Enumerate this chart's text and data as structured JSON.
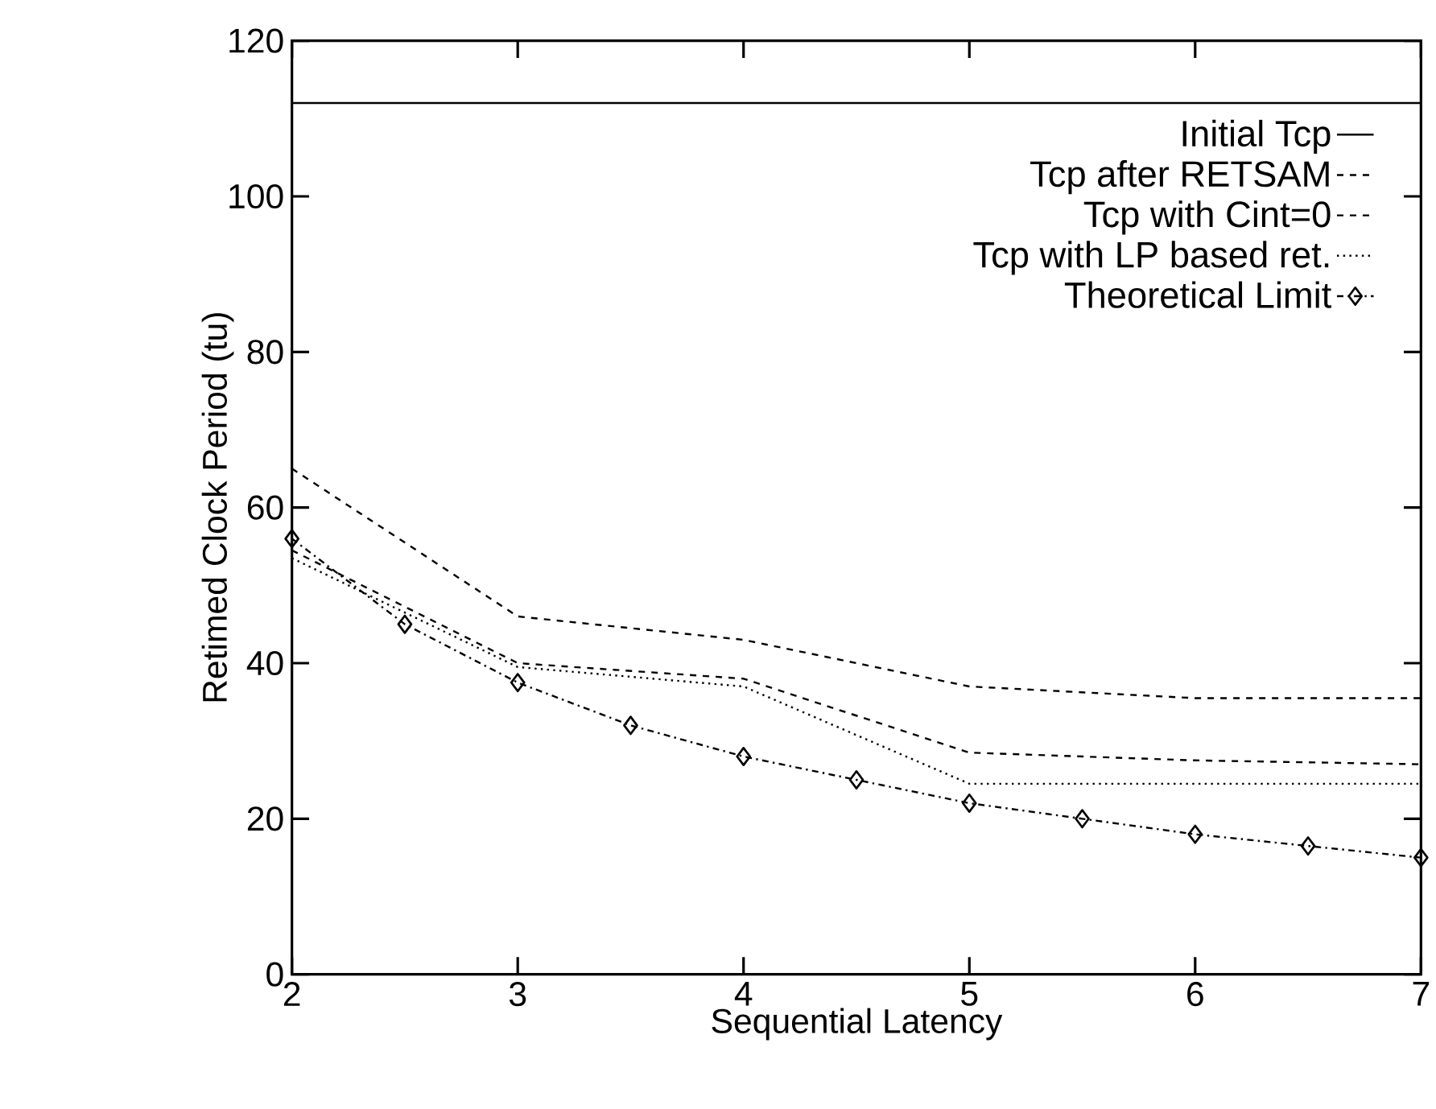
{
  "chart_data": {
    "type": "line",
    "xlabel": "Sequential Latency",
    "ylabel": "Retimed Clock Period (tu)",
    "xlim": [
      2,
      7
    ],
    "xticks": [
      2,
      3,
      4,
      5,
      6,
      7
    ],
    "ylim": [
      0,
      120
    ],
    "yticks": [
      0,
      20,
      40,
      60,
      80,
      100,
      120
    ],
    "grid": false,
    "legend": "top right",
    "marker": "none",
    "series": [
      {
        "name": "Initial Tcp",
        "color": "#000000",
        "line_style": "solid",
        "x": [
          2,
          7
        ],
        "values": [
          112,
          112
        ]
      },
      {
        "name": "Tcp after RETSAM",
        "color": "#000000",
        "line_style": "dashed",
        "x": [
          2,
          3,
          4,
          5,
          6,
          7
        ],
        "values": [
          65,
          46,
          43,
          37,
          35.5,
          35.5
        ]
      },
      {
        "name": "Tcp with Cint=0",
        "color": "#000000",
        "line_style": "dashed",
        "x": [
          2,
          3,
          4,
          5,
          6,
          7
        ],
        "values": [
          54.5,
          40,
          38,
          28.5,
          27.5,
          27
        ]
      },
      {
        "name": "Tcp with LP based ret.",
        "color": "#000000",
        "line_style": "dotted",
        "x": [
          2,
          3,
          4,
          5,
          6,
          7
        ],
        "values": [
          53.5,
          39.5,
          37,
          24.5,
          24.5,
          24.5
        ]
      },
      {
        "name": "Theoretical Limit",
        "color": "#000000",
        "line_style": "dashdot",
        "marker": "diamond",
        "x": [
          2,
          2.5,
          3,
          3.5,
          4,
          4.5,
          5,
          5.5,
          6,
          6.5,
          7
        ],
        "values": [
          56,
          45,
          37.5,
          32,
          28,
          25,
          22,
          20,
          18,
          16.5,
          15
        ]
      }
    ]
  }
}
